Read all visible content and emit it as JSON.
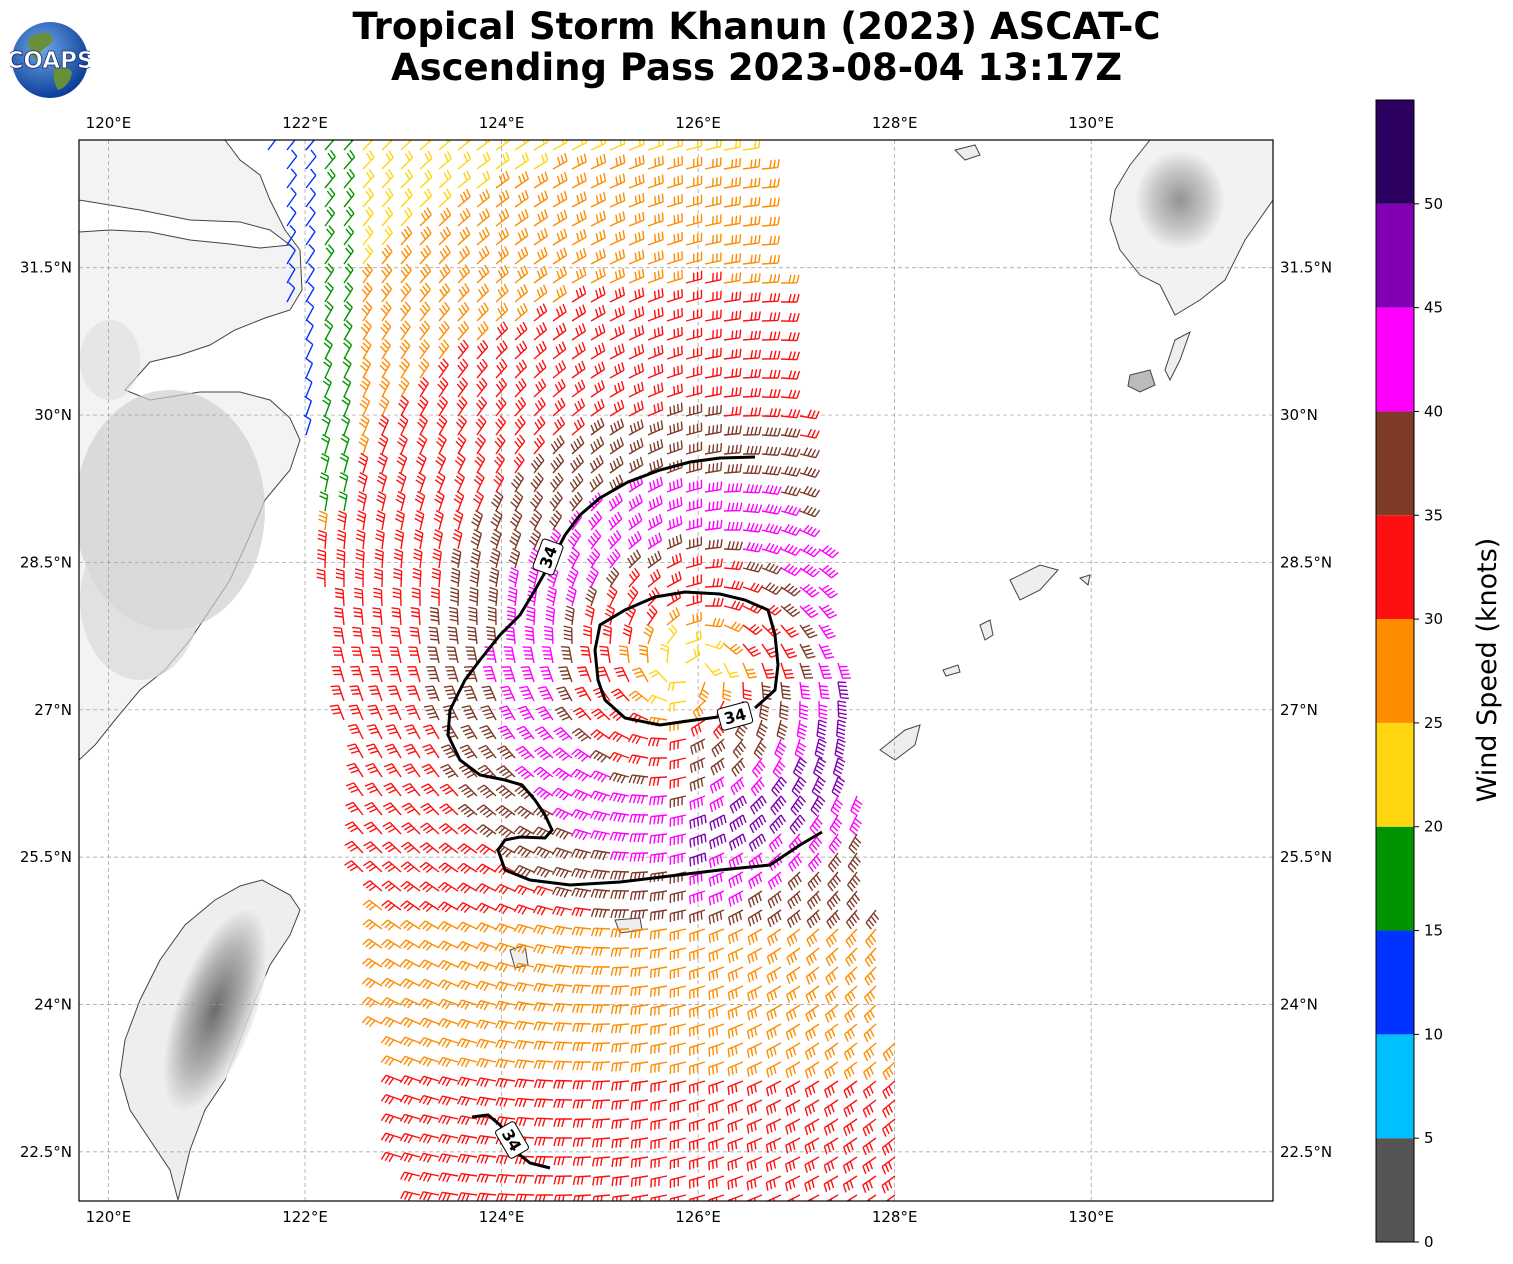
{
  "title": {
    "line1": "Tropical Storm Khanun (2023) ASCAT-C",
    "line2": "Ascending Pass 2023-08-04 13:17Z"
  },
  "logo": {
    "text": "COAPS",
    "icon": "globe-icon"
  },
  "map": {
    "lon_range": [
      119.7,
      131.85
    ],
    "lat_range": [
      22.0,
      32.8
    ],
    "lon_ticks": [
      {
        "value": 120,
        "label": "120°E"
      },
      {
        "value": 122,
        "label": "122°E"
      },
      {
        "value": 124,
        "label": "124°E"
      },
      {
        "value": 126,
        "label": "126°E"
      },
      {
        "value": 128,
        "label": "128°E"
      },
      {
        "value": 130,
        "label": "130°E"
      }
    ],
    "lat_ticks": [
      {
        "value": 22.5,
        "label": "22.5°N"
      },
      {
        "value": 24.0,
        "label": "24°N"
      },
      {
        "value": 25.5,
        "label": "25.5°N"
      },
      {
        "value": 27.0,
        "label": "27°N"
      },
      {
        "value": 28.5,
        "label": "28.5°N"
      },
      {
        "value": 30.0,
        "label": "30°N"
      },
      {
        "value": 31.5,
        "label": "31.5°N"
      }
    ],
    "grid": true,
    "storm_center": {
      "lon": 125.9,
      "lat": 27.4
    },
    "contour_value": 34,
    "contour_labels": [
      "34",
      "34",
      "34"
    ]
  },
  "colorbar": {
    "label": "Wind Speed (knots)",
    "bins": [
      {
        "min": 0,
        "max": 5,
        "color": "#555555"
      },
      {
        "min": 5,
        "max": 10,
        "color": "#00bfff"
      },
      {
        "min": 10,
        "max": 15,
        "color": "#0033ff"
      },
      {
        "min": 15,
        "max": 20,
        "color": "#009400"
      },
      {
        "min": 20,
        "max": 25,
        "color": "#ffd510"
      },
      {
        "min": 25,
        "max": 30,
        "color": "#ff8c00"
      },
      {
        "min": 30,
        "max": 35,
        "color": "#ff1010"
      },
      {
        "min": 35,
        "max": 40,
        "color": "#7f3a28"
      },
      {
        "min": 40,
        "max": 45,
        "color": "#ff00ff"
      },
      {
        "min": 45,
        "max": 50,
        "color": "#8200b4"
      },
      {
        "min": 50,
        "max": 55,
        "color": "#2b0060"
      }
    ],
    "ticks": [
      "0",
      "5",
      "10",
      "15",
      "20",
      "25",
      "30",
      "35",
      "40",
      "45",
      "50"
    ]
  }
}
